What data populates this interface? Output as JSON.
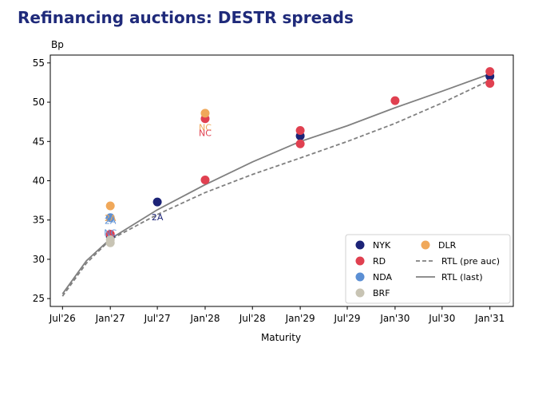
{
  "page": {
    "title": "Refinancing auctions: DESTR spreads"
  },
  "chart_data": {
    "type": "scatter",
    "title": "Refinancing auctions: DESTR spreads",
    "ylabel": "Bp",
    "xlabel": "Maturity",
    "xlim": [
      "2026-05-15",
      "2031-04-01"
    ],
    "ylim": [
      24,
      56
    ],
    "y_ticks": [
      25,
      30,
      35,
      40,
      45,
      50,
      55
    ],
    "x_ticks": [
      {
        "label": "Jul'26",
        "date": "2026-07-01"
      },
      {
        "label": "Jan'27",
        "date": "2027-01-01"
      },
      {
        "label": "Jul'27",
        "date": "2027-07-01"
      },
      {
        "label": "Jan'28",
        "date": "2028-01-01"
      },
      {
        "label": "Jul'28",
        "date": "2028-07-01"
      },
      {
        "label": "Jan'29",
        "date": "2029-01-01"
      },
      {
        "label": "Jul'29",
        "date": "2029-07-01"
      },
      {
        "label": "Jan'30",
        "date": "2030-01-01"
      },
      {
        "label": "Jul'30",
        "date": "2030-07-01"
      },
      {
        "label": "Jan'31",
        "date": "2031-01-01"
      }
    ],
    "grid": false,
    "legend_position": "lower-right",
    "scatter_series": [
      {
        "name": "NYK",
        "color": "#1c2377",
        "points": [
          {
            "x": "2027-01-01",
            "y": 32.9
          },
          {
            "x": "2027-07-01",
            "y": 37.3
          },
          {
            "x": "2029-01-01",
            "y": 45.7
          },
          {
            "x": "2031-01-01",
            "y": 53.3
          }
        ]
      },
      {
        "name": "RD",
        "color": "#e04050",
        "points": [
          {
            "x": "2027-01-01",
            "y": 33.2
          },
          {
            "x": "2028-01-01",
            "y": 47.9
          },
          {
            "x": "2028-01-01",
            "y": 40.1
          },
          {
            "x": "2029-01-01",
            "y": 46.4
          },
          {
            "x": "2029-01-01",
            "y": 44.7
          },
          {
            "x": "2030-01-01",
            "y": 50.2
          },
          {
            "x": "2031-01-01",
            "y": 53.9
          },
          {
            "x": "2031-01-01",
            "y": 52.4
          }
        ]
      },
      {
        "name": "NDA",
        "color": "#5b8fd4",
        "points": [
          {
            "x": "2027-01-01",
            "y": 35.3
          }
        ]
      },
      {
        "name": "BRF",
        "color": "#c8c4b4",
        "points": [
          {
            "x": "2027-01-01",
            "y": 32.5
          },
          {
            "x": "2027-01-01",
            "y": 32.1
          }
        ]
      },
      {
        "name": "DLR",
        "color": "#f0a85a",
        "points": [
          {
            "x": "2027-01-01",
            "y": 36.8
          },
          {
            "x": "2028-01-01",
            "y": 48.6
          }
        ]
      }
    ],
    "line_series": [
      {
        "name": "RTL (pre auc)",
        "color": "#808080",
        "dash": "dashed",
        "points": [
          {
            "x": "2026-07-01",
            "y": 25.3
          },
          {
            "x": "2026-10-01",
            "y": 29.5
          },
          {
            "x": "2027-01-01",
            "y": 32.5
          },
          {
            "x": "2027-07-01",
            "y": 35.7
          },
          {
            "x": "2028-01-01",
            "y": 38.5
          },
          {
            "x": "2028-07-01",
            "y": 40.8
          },
          {
            "x": "2029-01-01",
            "y": 42.9
          },
          {
            "x": "2029-07-01",
            "y": 45.0
          },
          {
            "x": "2030-01-01",
            "y": 47.3
          },
          {
            "x": "2030-07-01",
            "y": 49.9
          },
          {
            "x": "2031-01-01",
            "y": 52.8
          }
        ]
      },
      {
        "name": "RTL (last)",
        "color": "#808080",
        "dash": "solid",
        "points": [
          {
            "x": "2026-07-01",
            "y": 25.6
          },
          {
            "x": "2026-10-01",
            "y": 29.8
          },
          {
            "x": "2027-01-01",
            "y": 32.6
          },
          {
            "x": "2027-07-01",
            "y": 36.3
          },
          {
            "x": "2028-01-01",
            "y": 39.5
          },
          {
            "x": "2028-07-01",
            "y": 42.4
          },
          {
            "x": "2029-01-01",
            "y": 45.0
          },
          {
            "x": "2029-07-01",
            "y": 47.0
          },
          {
            "x": "2030-01-01",
            "y": 49.3
          },
          {
            "x": "2030-07-01",
            "y": 51.4
          },
          {
            "x": "2031-01-01",
            "y": 53.6
          }
        ]
      }
    ],
    "annotations": [
      {
        "text": "2A",
        "x": "2027-07-01",
        "y": 35.4,
        "color": "#1c2377"
      },
      {
        "text": "NC",
        "x": "2028-01-01",
        "y": 46.8,
        "color": "#f0a85a"
      },
      {
        "text": "NC",
        "x": "2028-01-01",
        "y": 46.1,
        "color": "#e04050"
      },
      {
        "text": "2A",
        "x": "2027-01-01",
        "y": 35.3,
        "color": "#f0a85a"
      },
      {
        "text": "2A",
        "x": "2027-01-01",
        "y": 34.9,
        "color": "#5b8fd4"
      },
      {
        "text": "NC",
        "x": "2027-01-01",
        "y": 33.4,
        "color": "#5b8fd4"
      }
    ],
    "legend": {
      "items": [
        {
          "label": "NYK",
          "kind": "marker",
          "color": "#1c2377"
        },
        {
          "label": "RD",
          "kind": "marker",
          "color": "#e04050"
        },
        {
          "label": "NDA",
          "kind": "marker",
          "color": "#5b8fd4"
        },
        {
          "label": "BRF",
          "kind": "marker",
          "color": "#c8c4b4"
        },
        {
          "label": "DLR",
          "kind": "marker",
          "color": "#f0a85a"
        },
        {
          "label": "RTL (pre auc)",
          "kind": "dashed-line",
          "color": "#808080"
        },
        {
          "label": "RTL (last)",
          "kind": "solid-line",
          "color": "#808080"
        }
      ]
    }
  }
}
